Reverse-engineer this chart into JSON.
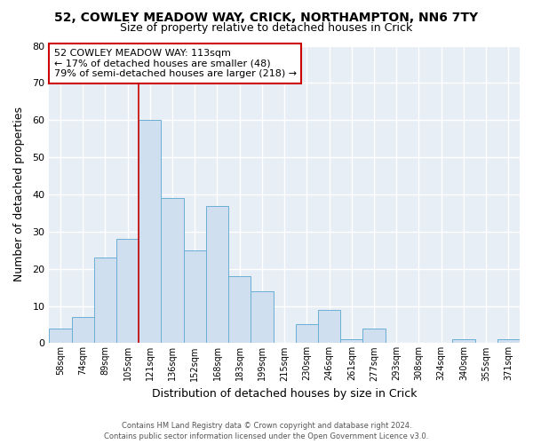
{
  "title": "52, COWLEY MEADOW WAY, CRICK, NORTHAMPTON, NN6 7TY",
  "subtitle": "Size of property relative to detached houses in Crick",
  "xlabel": "Distribution of detached houses by size in Crick",
  "ylabel": "Number of detached properties",
  "bar_labels": [
    "58sqm",
    "74sqm",
    "89sqm",
    "105sqm",
    "121sqm",
    "136sqm",
    "152sqm",
    "168sqm",
    "183sqm",
    "199sqm",
    "215sqm",
    "230sqm",
    "246sqm",
    "261sqm",
    "277sqm",
    "293sqm",
    "308sqm",
    "324sqm",
    "340sqm",
    "355sqm",
    "371sqm"
  ],
  "bar_values": [
    4,
    7,
    23,
    28,
    60,
    39,
    25,
    37,
    18,
    14,
    0,
    5,
    9,
    1,
    4,
    0,
    0,
    0,
    1,
    0,
    1
  ],
  "bar_color": "#cfdff0",
  "bar_edge_color": "#6baed6",
  "ylim": [
    0,
    80
  ],
  "yticks": [
    0,
    10,
    20,
    30,
    40,
    50,
    60,
    70,
    80
  ],
  "property_line_color": "#cc0000",
  "annotation_line1": "52 COWLEY MEADOW WAY: 113sqm",
  "annotation_line2": "← 17% of detached houses are smaller (48)",
  "annotation_line3": "79% of semi-detached houses are larger (218) →",
  "annotation_box_color": "#ffffff",
  "annotation_box_edge": "#cc0000",
  "footer_line1": "Contains HM Land Registry data © Crown copyright and database right 2024.",
  "footer_line2": "Contains public sector information licensed under the Open Government Licence v3.0.",
  "fig_bg_color": "#ffffff",
  "plot_bg_color": "#e8eef5",
  "grid_color": "#ffffff"
}
